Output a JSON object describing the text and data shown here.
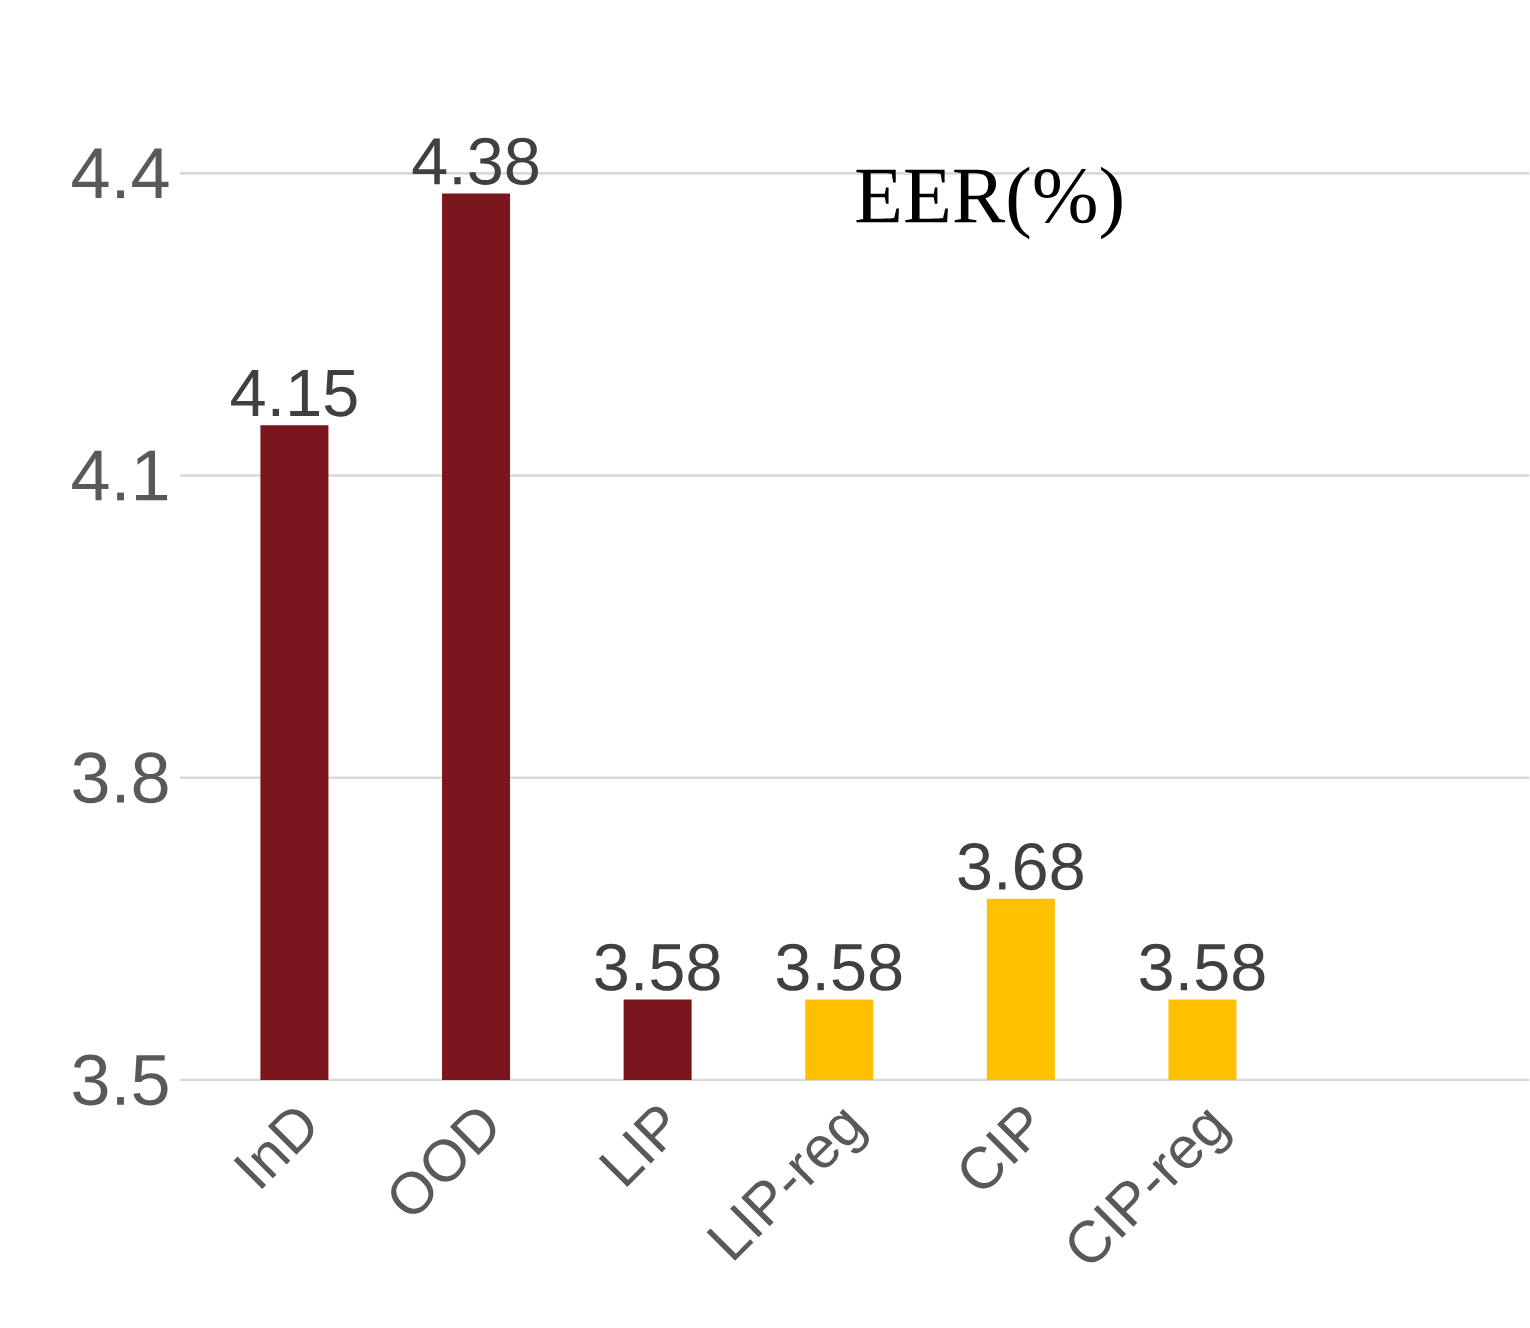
{
  "chart_data": {
    "type": "bar",
    "title": "EER(%)",
    "categories": [
      "InD",
      "OOD",
      "LIP",
      "LIP-reg",
      "CIP",
      "CIP-reg"
    ],
    "values": [
      4.15,
      4.38,
      3.58,
      3.58,
      3.68,
      3.58
    ],
    "colors": [
      "#7b161d",
      "#7b161d",
      "#7b161d",
      "#ffc000",
      "#ffc000",
      "#ffc000"
    ],
    "value_labels": [
      "4.15",
      "4.38",
      "3.58",
      "3.58",
      "3.68",
      "3.58"
    ],
    "ylim": [
      3.5,
      4.4
    ],
    "yticks": [
      3.5,
      3.8,
      4.1,
      4.4
    ],
    "grid": "y"
  }
}
